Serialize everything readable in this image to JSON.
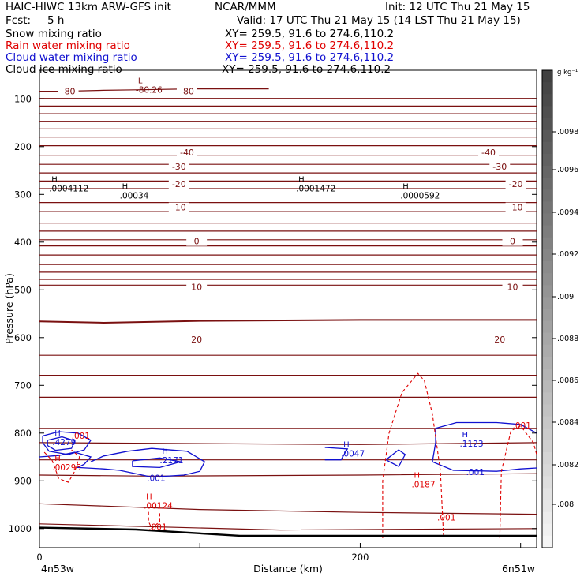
{
  "header": {
    "model": "HAIC-HIWC 13km ARW-GFS init",
    "center": "NCAR/MMM",
    "init": "Init: 12 UTC Thu 21 May 15",
    "fcst_label": "Fcst:",
    "fcst_value": "5 h",
    "valid": "Valid: 17 UTC Thu 21 May 15 (14 LST Thu 21 May 15)",
    "fields": [
      {
        "name": "Snow mixing ratio",
        "xy": "XY= 259.5, 91.6 to 274.6,110.2",
        "color": "#000000"
      },
      {
        "name": "Rain water mixing ratio",
        "xy": "XY= 259.5, 91.6 to 274.6,110.2",
        "color": "#e00000"
      },
      {
        "name": "Cloud water mixing ratio",
        "xy": "XY= 259.5, 91.6 to 274.6,110.2",
        "color": "#1010d0"
      },
      {
        "name": "Cloud ice mixing ratio",
        "xy": "XY= 259.5, 91.6 to 274.6,110.2",
        "color": "#000000"
      }
    ]
  },
  "colors": {
    "temperature": "#7a1010",
    "rain": "#e00000",
    "cloud_water": "#1010d0",
    "snow": "#000000",
    "terrain": "#000000"
  },
  "chart_data": {
    "type": "contour",
    "xlabel": "Distance (km)",
    "ylabel": "Pressure (hPa)",
    "x_ticks": [
      0,
      100,
      200,
      300
    ],
    "x_ticklabels": [
      "0",
      "",
      "200",
      ""
    ],
    "y_ticks": [
      100,
      200,
      300,
      400,
      500,
      600,
      700,
      800,
      900,
      1000
    ],
    "xlim": [
      0,
      310
    ],
    "ylim": [
      1040,
      40
    ],
    "x_endpoints": [
      "4n53w",
      "6n51w"
    ],
    "colorbar": {
      "unit": "g kg⁻¹",
      "labels": [
        ".0098",
        ".0096",
        ".0094",
        ".0092",
        ".009",
        ".0088",
        ".0086",
        ".0084",
        ".0082",
        ".008"
      ]
    },
    "temperature_contours": [
      {
        "value": -80,
        "labels": [
          {
            "x": 18,
            "text": "-80"
          },
          {
            "x": 92,
            "text": "-80"
          }
        ]
      },
      {
        "value": -40,
        "labels": [
          {
            "x": 92,
            "text": "-40"
          },
          {
            "x": 280,
            "text": "-40"
          }
        ]
      },
      {
        "value": -30,
        "labels": [
          {
            "x": 87,
            "text": "-30"
          },
          {
            "x": 287,
            "text": "-30"
          }
        ]
      },
      {
        "value": -20,
        "labels": [
          {
            "x": 87,
            "text": "-20"
          },
          {
            "x": 297,
            "text": "-20"
          }
        ]
      },
      {
        "value": -10,
        "labels": [
          {
            "x": 87,
            "text": "-10"
          },
          {
            "x": 297,
            "text": "-10"
          }
        ]
      },
      {
        "value": 0,
        "labels": [
          {
            "x": 98,
            "text": "0"
          },
          {
            "x": 295,
            "text": "0"
          }
        ]
      },
      {
        "value": 10,
        "labels": [
          {
            "x": 98,
            "text": "10"
          },
          {
            "x": 295,
            "text": "10"
          }
        ]
      },
      {
        "value": 20,
        "labels": [
          {
            "x": 98,
            "text": "20"
          },
          {
            "x": 287,
            "text": "20"
          }
        ]
      }
    ],
    "extrema_labels": [
      {
        "x": 60,
        "p": 84,
        "mark": "L",
        "value": "-80.26",
        "color": "#7a1010"
      },
      {
        "x": 6,
        "p": 290,
        "mark": "H",
        "value": ".0004112",
        "color": "#000000"
      },
      {
        "x": 50,
        "p": 305,
        "mark": "H",
        "value": ".00034",
        "color": "#000000"
      },
      {
        "x": 160,
        "p": 290,
        "mark": "H",
        "value": ".0001472",
        "color": "#000000"
      },
      {
        "x": 225,
        "p": 305,
        "mark": "H",
        "value": ".0000592",
        "color": "#000000"
      },
      {
        "x": 8,
        "p": 822,
        "mark": "H",
        "value": ".4279",
        "color": "#1010d0"
      },
      {
        "x": 75,
        "p": 860,
        "mark": "H",
        "value": ".2171",
        "color": "#1010d0"
      },
      {
        "x": 188,
        "p": 846,
        "mark": "H",
        "value": ".0047",
        "color": "#1010d0"
      },
      {
        "x": 262,
        "p": 825,
        "mark": "H",
        "value": ".1123",
        "color": "#1010d0"
      },
      {
        "x": 8,
        "p": 875,
        "mark": "H",
        "value": ".00295",
        "color": "#e00000"
      },
      {
        "x": 65,
        "p": 955,
        "mark": "H",
        "value": ".00124",
        "color": "#e00000"
      },
      {
        "x": 232,
        "p": 910,
        "mark": "H",
        "value": ".0187",
        "color": "#e00000"
      }
    ],
    "contour_labels": [
      {
        "x": 20,
        "p": 812,
        "text": ".001",
        "color": "#e00000"
      },
      {
        "x": 68,
        "p": 1003,
        "text": ".001",
        "color": "#e00000"
      },
      {
        "x": 248,
        "p": 983,
        "text": ".001",
        "color": "#e00000"
      },
      {
        "x": 295,
        "p": 790,
        "text": ".001",
        "color": "#e00000"
      },
      {
        "x": 67,
        "p": 900,
        "text": ".001",
        "color": "#1010d0"
      },
      {
        "x": 266,
        "p": 888,
        "text": ".001",
        "color": "#1010d0"
      }
    ]
  }
}
